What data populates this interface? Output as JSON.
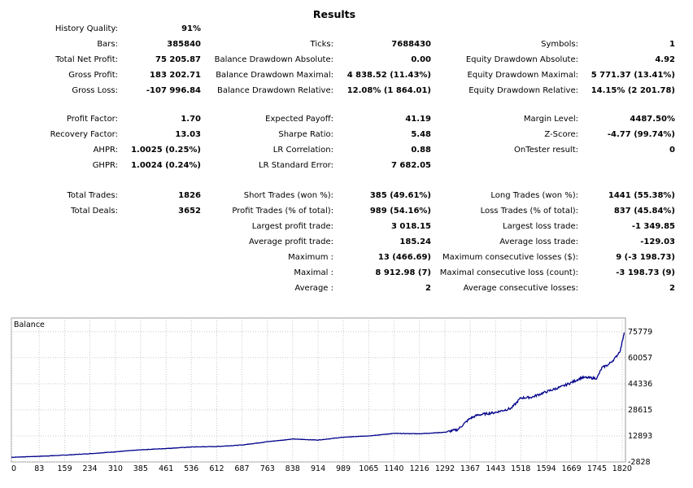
{
  "report": {
    "title": "Results",
    "col1": [
      {
        "label": "History Quality:",
        "value": "91%",
        "row": 0
      },
      {
        "label": "Bars:",
        "value": "385840",
        "row": 1
      },
      {
        "label": "Total Net Profit:",
        "value": "75 205.87",
        "row": 2
      },
      {
        "label": "Gross Profit:",
        "value": "183 202.71",
        "row": 3
      },
      {
        "label": "Gross Loss:",
        "value": "-107 996.84",
        "row": 4
      },
      {
        "label": "Profit Factor:",
        "value": "1.70",
        "row": 5
      },
      {
        "label": "Recovery Factor:",
        "value": "13.03",
        "row": 6
      },
      {
        "label": "AHPR:",
        "value": "1.0025 (0.25%)",
        "row": 7
      },
      {
        "label": "GHPR:",
        "value": "1.0024 (0.24%)",
        "row": 8
      },
      {
        "label": "Total Trades:",
        "value": "1826",
        "row": 9
      },
      {
        "label": "Total Deals:",
        "value": "3652",
        "row": 10
      }
    ],
    "col2": [
      {
        "label": "Ticks:",
        "value": "7688430",
        "row": 1
      },
      {
        "label": "Balance Drawdown Absolute:",
        "value": "0.00",
        "row": 2
      },
      {
        "label": "Balance Drawdown Maximal:",
        "value": "4 838.52 (11.43%)",
        "row": 3
      },
      {
        "label": "Balance Drawdown Relative:",
        "value": "12.08% (1 864.01)",
        "row": 4
      },
      {
        "label": "Expected Payoff:",
        "value": "41.19",
        "row": 5
      },
      {
        "label": "Sharpe Ratio:",
        "value": "5.48",
        "row": 6
      },
      {
        "label": "LR Correlation:",
        "value": "0.88",
        "row": 7
      },
      {
        "label": "LR Standard Error:",
        "value": "7 682.05",
        "row": 8
      },
      {
        "label": "Short Trades (won %):",
        "value": "385 (49.61%)",
        "row": 9
      },
      {
        "label": "Profit Trades (% of total):",
        "value": "989 (54.16%)",
        "row": 10
      },
      {
        "label": "Largest profit trade:",
        "value": "3 018.15",
        "row": 11
      },
      {
        "label": "Average profit trade:",
        "value": "185.24",
        "row": 12
      },
      {
        "label": "Maximum :",
        "value": "13 (466.69)",
        "row": 13
      },
      {
        "label": "Maximal :",
        "value": "8 912.98 (7)",
        "row": 14
      },
      {
        "label": "Average :",
        "value": "2",
        "row": 15
      }
    ],
    "col3": [
      {
        "label": "Symbols:",
        "value": "1",
        "row": 1
      },
      {
        "label": "Equity Drawdown Absolute:",
        "value": "4.92",
        "row": 2
      },
      {
        "label": "Equity Drawdown Maximal:",
        "value": "5 771.37 (13.41%)",
        "row": 3
      },
      {
        "label": "Equity Drawdown Relative:",
        "value": "14.15% (2 201.78)",
        "row": 4
      },
      {
        "label": "Margin Level:",
        "value": "4487.50%",
        "row": 5
      },
      {
        "label": "Z-Score:",
        "value": "-4.77 (99.74%)",
        "row": 6
      },
      {
        "label": "OnTester result:",
        "value": "0",
        "row": 7
      },
      {
        "label": "Long Trades (won %):",
        "value": "1441 (55.38%)",
        "row": 9
      },
      {
        "label": "Loss Trades (% of total):",
        "value": "837 (45.84%)",
        "row": 10
      },
      {
        "label": "Largest loss trade:",
        "value": "-1 349.85",
        "row": 11
      },
      {
        "label": "Average loss trade:",
        "value": "-129.03",
        "row": 12
      },
      {
        "label": "Maximum consecutive losses ($):",
        "value": "9 (-3 198.73)",
        "row": 13
      },
      {
        "label": "Maximal consecutive loss (count):",
        "value": "-3 198.73 (9)",
        "row": 14
      },
      {
        "label": "Average consecutive losses:",
        "value": "2",
        "row": 15
      }
    ]
  },
  "chart_data": {
    "type": "line",
    "title": "Balance",
    "color": "#00008b",
    "grid_color": "#c8c8c8",
    "xlim": [
      0,
      1830
    ],
    "ylim": [
      -2828,
      84000
    ],
    "x_ticks": [
      "0",
      "83",
      "159",
      "234",
      "310",
      "385",
      "461",
      "536",
      "612",
      "687",
      "763",
      "838",
      "914",
      "989",
      "1065",
      "1140",
      "1216",
      "1292",
      "1367",
      "1443",
      "1518",
      "1594",
      "1669",
      "1745",
      "1820"
    ],
    "y_ticks": [
      "-2828",
      "12893",
      "28615",
      "44336",
      "60057",
      "75779"
    ],
    "series": [
      {
        "name": "Balance",
        "x": [
          0,
          83,
          159,
          234,
          310,
          385,
          461,
          536,
          612,
          687,
          763,
          838,
          914,
          989,
          1065,
          1140,
          1216,
          1292,
          1330,
          1367,
          1390,
          1443,
          1490,
          1518,
          1550,
          1594,
          1640,
          1669,
          1700,
          1745,
          1760,
          1780,
          1800,
          1815,
          1826
        ],
        "y": [
          0,
          600,
          1300,
          2200,
          3300,
          4500,
          5300,
          6200,
          6500,
          7400,
          9400,
          11000,
          10400,
          12100,
          12900,
          14400,
          14200,
          15100,
          16700,
          23500,
          25500,
          27100,
          29600,
          35800,
          36200,
          39500,
          42600,
          45100,
          48100,
          47700,
          54000,
          56000,
          60000,
          64600,
          75200
        ]
      }
    ]
  }
}
